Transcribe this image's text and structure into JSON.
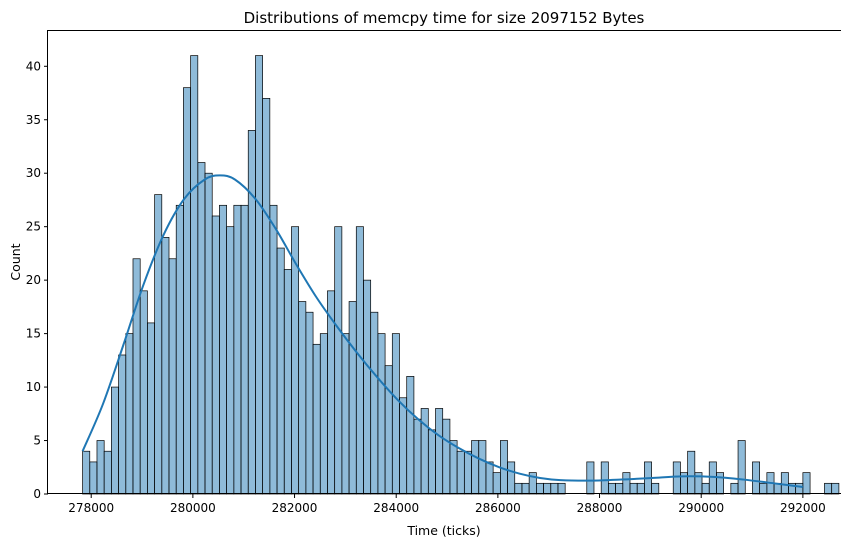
{
  "chart_data": {
    "type": "bar",
    "title": "Distributions of memcpy time for size 2097152 Bytes",
    "xlabel": "Time (ticks)",
    "ylabel": "Count",
    "xlim": [
      277150,
      292750
    ],
    "ylim": [
      0,
      43.3
    ],
    "bin_start": 277830,
    "bin_width": 141.7,
    "counts": [
      4,
      3,
      5,
      4,
      10,
      13,
      15,
      22,
      19,
      16,
      28,
      24,
      22,
      27,
      38,
      41,
      31,
      30,
      26,
      27,
      25,
      27,
      27,
      34,
      41,
      37,
      27,
      23,
      21,
      25,
      18,
      17,
      14,
      15,
      19,
      25,
      15,
      18,
      25,
      20,
      17,
      15,
      12,
      15,
      9,
      11,
      7,
      8,
      6,
      8,
      7,
      5,
      4,
      4,
      5,
      5,
      3,
      2,
      5,
      3,
      1,
      1,
      2,
      1,
      1,
      1,
      1,
      0,
      0,
      0,
      3,
      0,
      3,
      1,
      1,
      2,
      1,
      1,
      3,
      1,
      0,
      0,
      3,
      2,
      4,
      2,
      1,
      3,
      2,
      0,
      1,
      5,
      0,
      3,
      1,
      2,
      1,
      2,
      1,
      1,
      2,
      0,
      0,
      1,
      1
    ],
    "kde": {
      "x": [
        277830,
        278230,
        278630,
        279030,
        279430,
        279830,
        280230,
        280530,
        280830,
        281230,
        281630,
        282030,
        282430,
        282830,
        283230,
        283630,
        284030,
        284430,
        284830,
        285230,
        285630,
        286030,
        286430,
        286830,
        287230,
        287830,
        288430,
        289030,
        289630,
        290230,
        290830,
        291430,
        292000
      ],
      "y": [
        4.0,
        8.4,
        13.9,
        19.6,
        24.3,
        27.6,
        29.4,
        29.8,
        29.4,
        27.6,
        24.8,
        21.5,
        18.4,
        15.7,
        13.2,
        10.9,
        8.8,
        7.0,
        5.5,
        4.3,
        3.3,
        2.5,
        1.9,
        1.5,
        1.3,
        1.25,
        1.35,
        1.5,
        1.65,
        1.6,
        1.35,
        1.0,
        0.65
      ]
    },
    "xticks": [
      278000,
      280000,
      282000,
      284000,
      286000,
      288000,
      290000,
      292000
    ],
    "yticks": [
      0,
      5,
      10,
      15,
      20,
      25,
      30,
      35,
      40
    ],
    "grid": false,
    "colors": {
      "bar_fill": "#1f77b4",
      "bar_fill_opacity": 0.5,
      "bar_edge": "#000000",
      "kde_line": "#1f77b4"
    }
  }
}
